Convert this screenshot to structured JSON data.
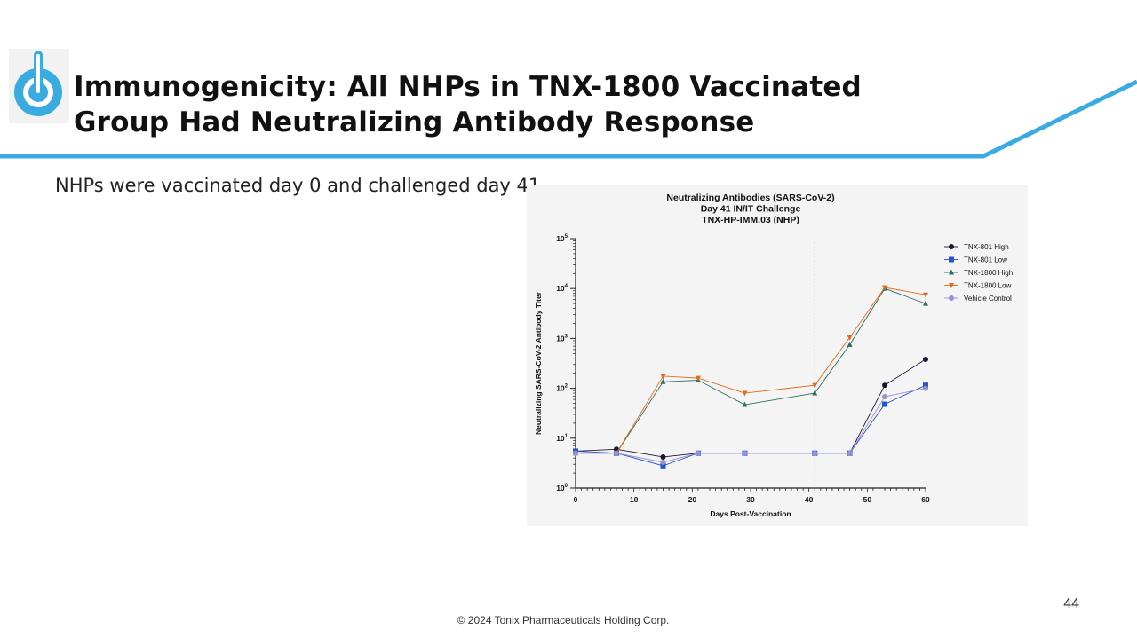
{
  "slide": {
    "title_line1": "Immunogenicity: All NHPs in TNX-1800 Vaccinated",
    "title_line2": "Group Had Neutralizing Antibody Response",
    "subtitle": "NHPs were vaccinated day 0 and challenged day 41",
    "page_number": "44",
    "footer": "© 2024 Tonix Pharmaceuticals Holding Corp.",
    "accent_color": "#3aabe0"
  },
  "chart_data": {
    "type": "line",
    "title_lines": [
      "Neutralizing Antibodies (SARS-CoV-2)",
      "Day 41 IN/IT Challenge",
      "TNX-HP-IMM.03 (NHP)"
    ],
    "xlabel": "Days Post-Vaccination",
    "ylabel": "Neutralizing SARS-CoV-2 Antibody Titer",
    "xlim": [
      0,
      60
    ],
    "ylim": [
      1,
      100000
    ],
    "yscale": "log",
    "x_ticks": [
      0,
      10,
      20,
      30,
      40,
      50,
      60
    ],
    "y_ticks": [
      1,
      10,
      100,
      1000,
      10000,
      100000
    ],
    "y_tick_base": "10",
    "y_tick_exponents": [
      "0",
      "1",
      "2",
      "3",
      "4",
      "5"
    ],
    "reference_line_x": 41,
    "grid": false,
    "legend_position": "right",
    "series": [
      {
        "name": "TNX-801 High",
        "color": "#1a1a2e",
        "marker": "circle",
        "x": [
          0,
          7,
          15,
          21,
          29,
          41,
          47,
          53,
          60
        ],
        "y": [
          5.5,
          6,
          4.2,
          5,
          5,
          5,
          5,
          115,
          380
        ]
      },
      {
        "name": "TNX-801 Low",
        "color": "#2255cc",
        "marker": "square",
        "x": [
          0,
          7,
          15,
          21,
          29,
          41,
          47,
          53,
          60
        ],
        "y": [
          5.5,
          5,
          2.8,
          5,
          5,
          5,
          5,
          48,
          115
        ]
      },
      {
        "name": "TNX-1800 High",
        "color": "#2a6e5e",
        "marker": "triangle-up",
        "x": [
          0,
          7,
          15,
          21,
          29,
          41,
          47,
          53,
          60
        ],
        "y": [
          5,
          5,
          135,
          145,
          47,
          80,
          750,
          10000,
          5000
        ]
      },
      {
        "name": "TNX-1800 Low",
        "color": "#e06b1f",
        "marker": "triangle-down",
        "x": [
          0,
          7,
          15,
          21,
          29,
          41,
          47,
          53,
          60
        ],
        "y": [
          5,
          5,
          175,
          160,
          80,
          115,
          1050,
          10500,
          7500
        ]
      },
      {
        "name": "Vehicle Control",
        "color": "#9a8ed6",
        "marker": "circle",
        "x": [
          0,
          7,
          15,
          21,
          29,
          41,
          47,
          53,
          60
        ],
        "y": [
          5,
          5,
          3.3,
          5,
          5,
          5,
          5,
          68,
          100
        ]
      }
    ]
  }
}
